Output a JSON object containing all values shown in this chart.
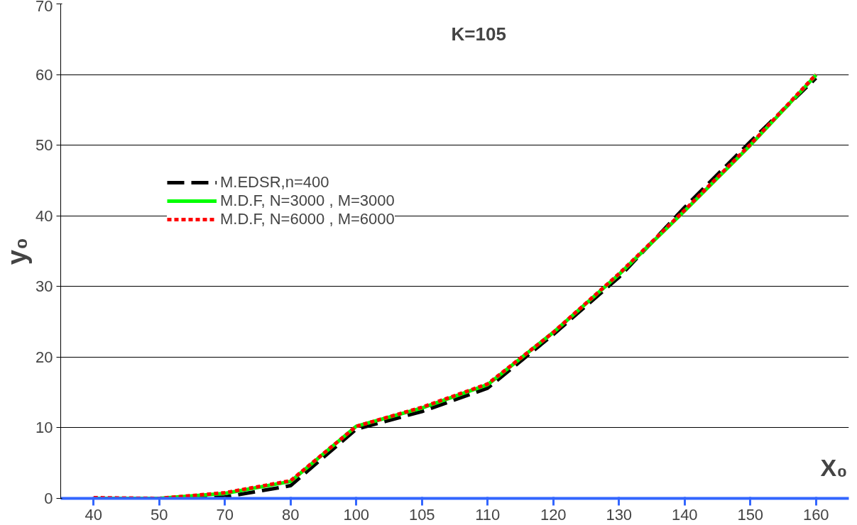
{
  "chart_data": {
    "type": "line",
    "title": "K=105",
    "xlabel": "X₀",
    "ylabel": "y₀",
    "categories": [
      "40",
      "50",
      "70",
      "80",
      "100",
      "105",
      "110",
      "120",
      "130",
      "140",
      "150",
      "160"
    ],
    "ylim": [
      0,
      70
    ],
    "yticks": [
      0,
      10,
      20,
      30,
      40,
      50,
      60,
      70
    ],
    "grid": "y",
    "legend": "top left",
    "series": [
      {
        "name": "M.EDSR,n=400",
        "color": "#000000",
        "line_style": "dashed",
        "values": [
          0,
          0,
          0.2,
          1.8,
          9.8,
          12.3,
          15.6,
          23.2,
          31.3,
          41.2,
          50.5,
          59.5
        ]
      },
      {
        "name": "M.D.F, N=3000 , M=3000",
        "color": "#00ff00",
        "line_style": "solid",
        "values": [
          0,
          0,
          0.7,
          2.4,
          10.2,
          12.8,
          16.1,
          23.5,
          31.7,
          40.7,
          50.0,
          59.9
        ]
      },
      {
        "name": "M.D.F, N=6000 , M=6000",
        "color": "#ff0000",
        "line_style": "dotted",
        "values": [
          0.1,
          0,
          0.8,
          2.5,
          10.2,
          12.9,
          16.2,
          23.5,
          31.8,
          40.8,
          50.1,
          60.0
        ]
      }
    ]
  }
}
